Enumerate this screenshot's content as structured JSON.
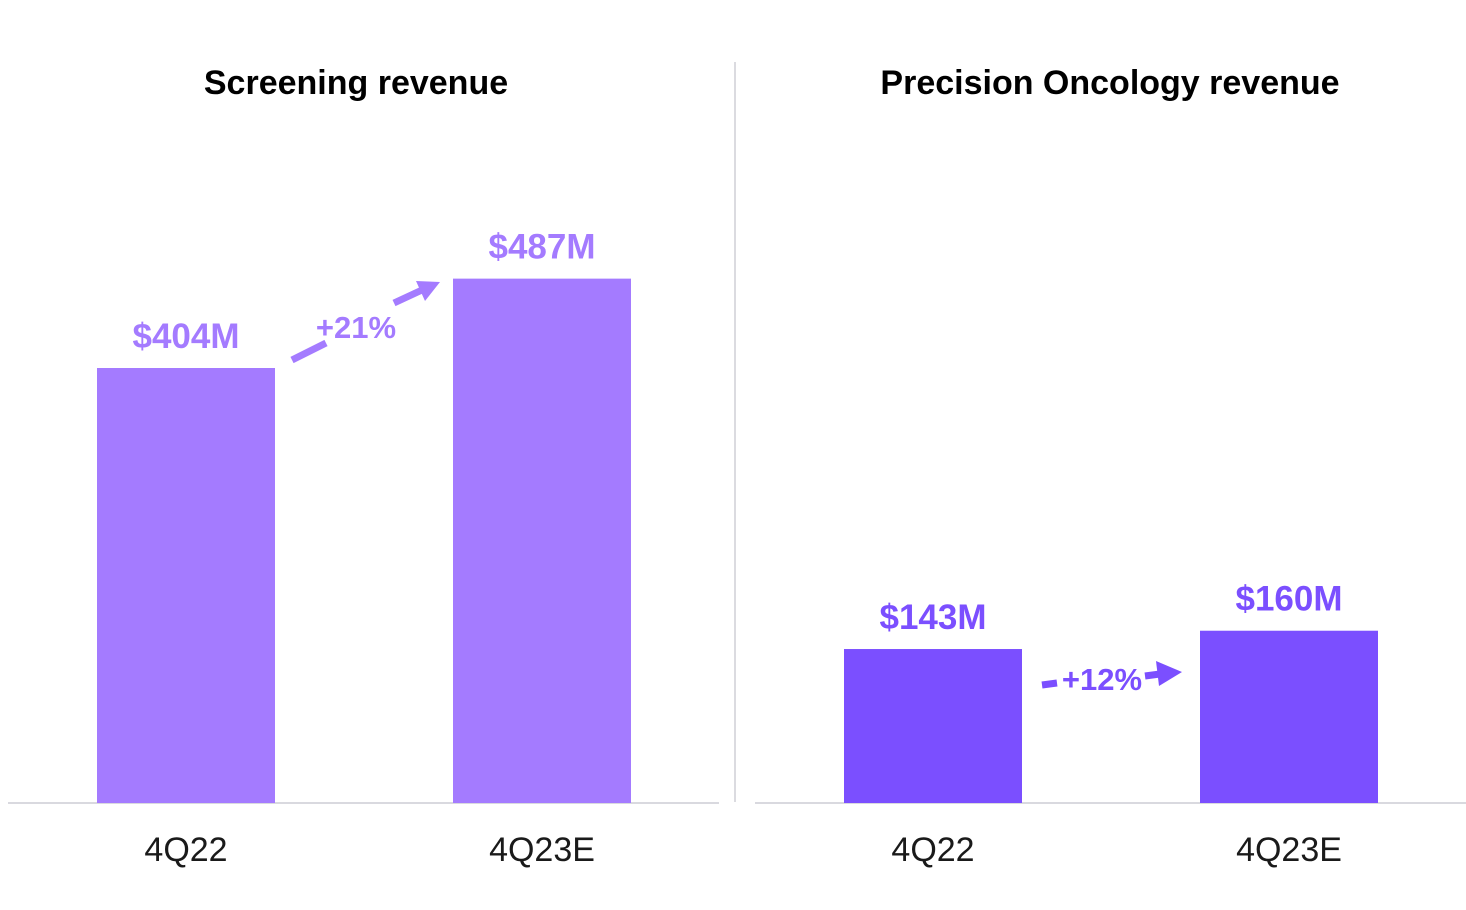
{
  "chart_data": [
    {
      "type": "bar",
      "title": "Screening revenue",
      "categories": [
        "4Q22",
        "4Q23E"
      ],
      "values": [
        404,
        487
      ],
      "unit": "$M",
      "data_labels": [
        "$404M",
        "$487M"
      ],
      "growth_label": "+21%",
      "color": "#A47BFF",
      "ylim": [
        0,
        500
      ],
      "grid": false,
      "legend": "none"
    },
    {
      "type": "bar",
      "title": "Precision Oncology revenue",
      "categories": [
        "4Q22",
        "4Q23E"
      ],
      "values": [
        143,
        160
      ],
      "unit": "$M",
      "data_labels": [
        "$143M",
        "$160M"
      ],
      "growth_label": "+12%",
      "color": "#7B4FFF",
      "ylim": [
        0,
        500
      ],
      "grid": false,
      "legend": "none"
    }
  ]
}
